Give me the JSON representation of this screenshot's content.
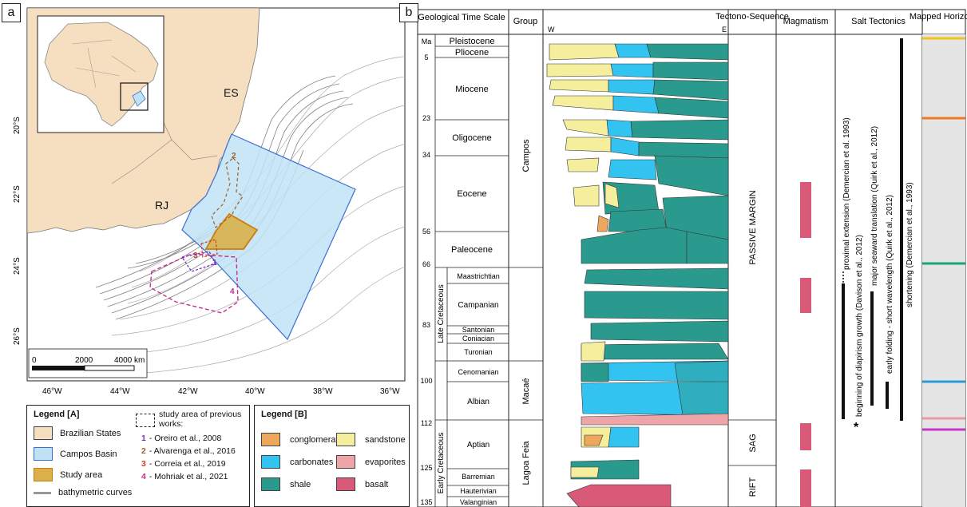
{
  "panel_a": {
    "label": "a",
    "map_labels": {
      "es": "ES",
      "rj": "RJ"
    },
    "lat_ticks": [
      "20°S",
      "22°S",
      "24°S",
      "26°S"
    ],
    "lon_ticks": [
      "46°W",
      "44°W",
      "42°W",
      "40°W",
      "38°W",
      "36°W"
    ],
    "scale": {
      "zero": "0",
      "mid": "2000",
      "end": "4000 km"
    },
    "study_numbers": [
      "1",
      "2",
      "3",
      "4"
    ],
    "colors": {
      "states": "#f5dfc0",
      "basin": "#bfe3f5",
      "basin_edge": "#3b6fd0",
      "study": "#d9b04a",
      "study_edge": "#c97d10",
      "ref1": "#7a2fbf",
      "ref2": "#a0602a",
      "ref3": "#c8402a",
      "ref4": "#c0308f"
    }
  },
  "legend_a": {
    "title": "Legend [A]",
    "items": [
      "Brazilian States",
      "Campos Basin",
      "Study area",
      "bathymetric curves"
    ],
    "prev_title": "study area of previous works:",
    "refs": [
      {
        "num": "1",
        "text": "- Oreiro et al., 2008"
      },
      {
        "num": "2",
        "text": "- Alvarenga et al., 2016"
      },
      {
        "num": "3",
        "text": "- Correia et al., 2019"
      },
      {
        "num": "4",
        "text": "- Mohriak et al., 2021"
      }
    ]
  },
  "legend_b": {
    "title": "Legend [B]",
    "items": [
      "conglomerate",
      "carbonates",
      "shale",
      "sandstone",
      "evaporites",
      "basalt"
    ],
    "colors": {
      "conglomerate": "#eda85e",
      "carbonates": "#33c3f0",
      "shale": "#2b9a8e",
      "sandstone": "#f5ee9c",
      "evaporites": "#eda5a9",
      "basalt": "#d95a78"
    }
  },
  "panel_b": {
    "label": "b",
    "headers": {
      "time": "Geological Time Scale",
      "group": "Group",
      "w": "W",
      "e": "E",
      "tecto": "Tectono-Sequence",
      "magmatism": "Magmatism",
      "salt": "Salt Tectonics",
      "mapped": "Mapped Horizons"
    },
    "ages": [
      "Ma",
      "5",
      "23",
      "34",
      "56",
      "66",
      "83",
      "100",
      "112",
      "125",
      "135"
    ],
    "epochs": [
      "Pleistocene",
      "Pliocene",
      "Miocene",
      "Oligocene",
      "Eocene",
      "Paleocene",
      "Maastrichtian",
      "Campanian",
      "Santonian",
      "Coniacian",
      "Turonian",
      "Cenomanian",
      "Albian",
      "Aptian",
      "Barremian",
      "Hauterivian",
      "Valanginian"
    ],
    "series": [
      "Late Cretaceous",
      "Early Cretaceous"
    ],
    "groups": [
      "Campos",
      "Macaé",
      "Lagoa Feia"
    ],
    "tectono": [
      "PASSIVE MARGIN",
      "SAG",
      "RIFT"
    ],
    "salt_events": [
      "proximal extension (Demercian et al. 1993)",
      "beginning of diapirism growth (Davison et al., 2012)",
      "major seaward translation (Quirk et al., 2012)",
      "early folding - short wavelength (Quirk et al., 2012)",
      "shortening (Demercian et al., 1993)"
    ],
    "asterisk": "*",
    "horizon_colors": [
      "#f2c21d",
      "#f07a22",
      "#1aa37a",
      "#2a9ad8",
      "#e89aa3",
      "#c934c9"
    ]
  }
}
